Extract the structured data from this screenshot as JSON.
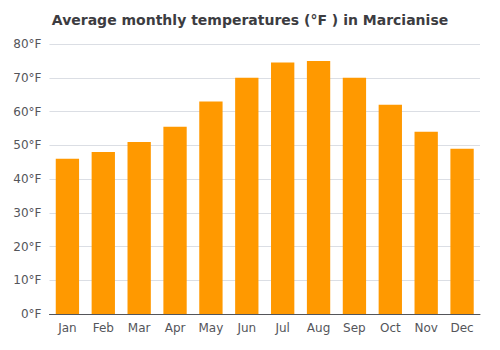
{
  "chart_data": {
    "type": "bar",
    "title": "Average monthly temperatures (°F ) in Marcianise",
    "categories": [
      "Jan",
      "Feb",
      "Mar",
      "Apr",
      "May",
      "Jun",
      "Jul",
      "Aug",
      "Sep",
      "Oct",
      "Nov",
      "Dec"
    ],
    "values": [
      46,
      48,
      51,
      55.5,
      63,
      70,
      74.5,
      75,
      70,
      62,
      54,
      49
    ],
    "color": "#FF9900",
    "ylim": [
      0,
      80
    ],
    "yticks": [
      {
        "value": 0,
        "label": "0°F"
      },
      {
        "value": 10,
        "label": "10°F"
      },
      {
        "value": 20,
        "label": "20°F"
      },
      {
        "value": 30,
        "label": "30°F"
      },
      {
        "value": 40,
        "label": "40°F"
      },
      {
        "value": 50,
        "label": "50°F"
      },
      {
        "value": 60,
        "label": "60°F"
      },
      {
        "value": 70,
        "label": "70°F"
      },
      {
        "value": 80,
        "label": "80°F"
      }
    ],
    "grid": true
  }
}
